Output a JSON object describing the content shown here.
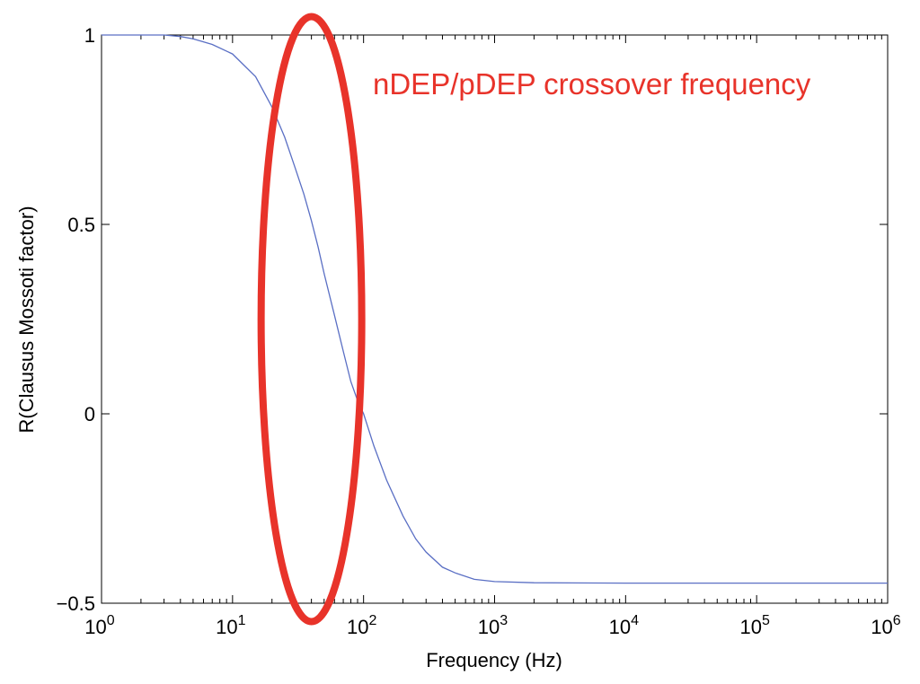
{
  "chart_data": {
    "type": "line",
    "title": "",
    "xlabel": "Frequency (Hz)",
    "ylabel": "R(Clausus Mossoti factor)",
    "xscale": "log",
    "xlim": [
      1,
      1000000
    ],
    "ylim": [
      -0.5,
      1
    ],
    "grid": false,
    "legend": "none",
    "x_ticks": [
      {
        "base": "10",
        "exp": "0"
      },
      {
        "base": "10",
        "exp": "1"
      },
      {
        "base": "10",
        "exp": "2"
      },
      {
        "base": "10",
        "exp": "3"
      },
      {
        "base": "10",
        "exp": "4"
      },
      {
        "base": "10",
        "exp": "5"
      },
      {
        "base": "10",
        "exp": "6"
      }
    ],
    "y_ticks": [
      "1",
      "0.5",
      "0",
      "−0.5"
    ],
    "series": [
      {
        "color": "#5a6fc4",
        "x": [
          1,
          2,
          3,
          4,
          5,
          7,
          10,
          15,
          20,
          25,
          30,
          35,
          40,
          45,
          50,
          60,
          70,
          80,
          90,
          100,
          120,
          150,
          200,
          250,
          300,
          400,
          500,
          700,
          1000,
          2000,
          10000,
          100000,
          1000000
        ],
        "y": [
          1.0,
          1.0,
          1.0,
          0.996,
          0.99,
          0.975,
          0.95,
          0.89,
          0.81,
          0.73,
          0.65,
          0.58,
          0.51,
          0.44,
          0.37,
          0.26,
          0.165,
          0.085,
          0.035,
          0.0,
          -0.085,
          -0.175,
          -0.27,
          -0.33,
          -0.365,
          -0.405,
          -0.42,
          -0.437,
          -0.443,
          -0.446,
          -0.447,
          -0.447,
          -0.447
        ]
      }
    ],
    "annotation": {
      "text": "nDEP/pDEP crossover frequency",
      "color": "#e8332a",
      "ellipse_center": [
        40,
        0.25
      ]
    }
  }
}
